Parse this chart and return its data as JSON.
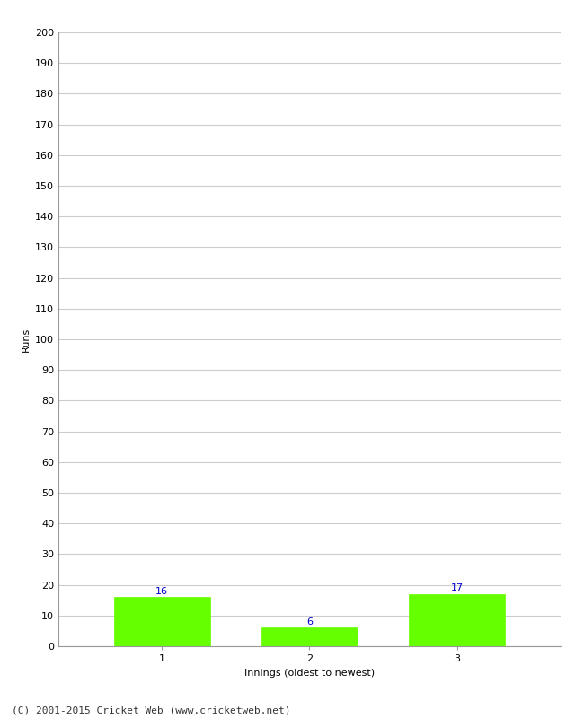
{
  "categories": [
    "1",
    "2",
    "3"
  ],
  "values": [
    16,
    6,
    17
  ],
  "bar_color": "#66ff00",
  "bar_edge_color": "#66ff00",
  "ylabel": "Runs",
  "xlabel": "Innings (oldest to newest)",
  "ylim": [
    0,
    200
  ],
  "yticks": [
    0,
    10,
    20,
    30,
    40,
    50,
    60,
    70,
    80,
    90,
    100,
    110,
    120,
    130,
    140,
    150,
    160,
    170,
    180,
    190,
    200
  ],
  "label_color": "#0000cc",
  "label_fontsize": 8,
  "footer": "(C) 2001-2015 Cricket Web (www.cricketweb.net)",
  "background_color": "#ffffff",
  "grid_color": "#cccccc",
  "bar_width": 0.65,
  "tick_fontsize": 8,
  "axis_label_fontsize": 8,
  "footer_fontsize": 8
}
